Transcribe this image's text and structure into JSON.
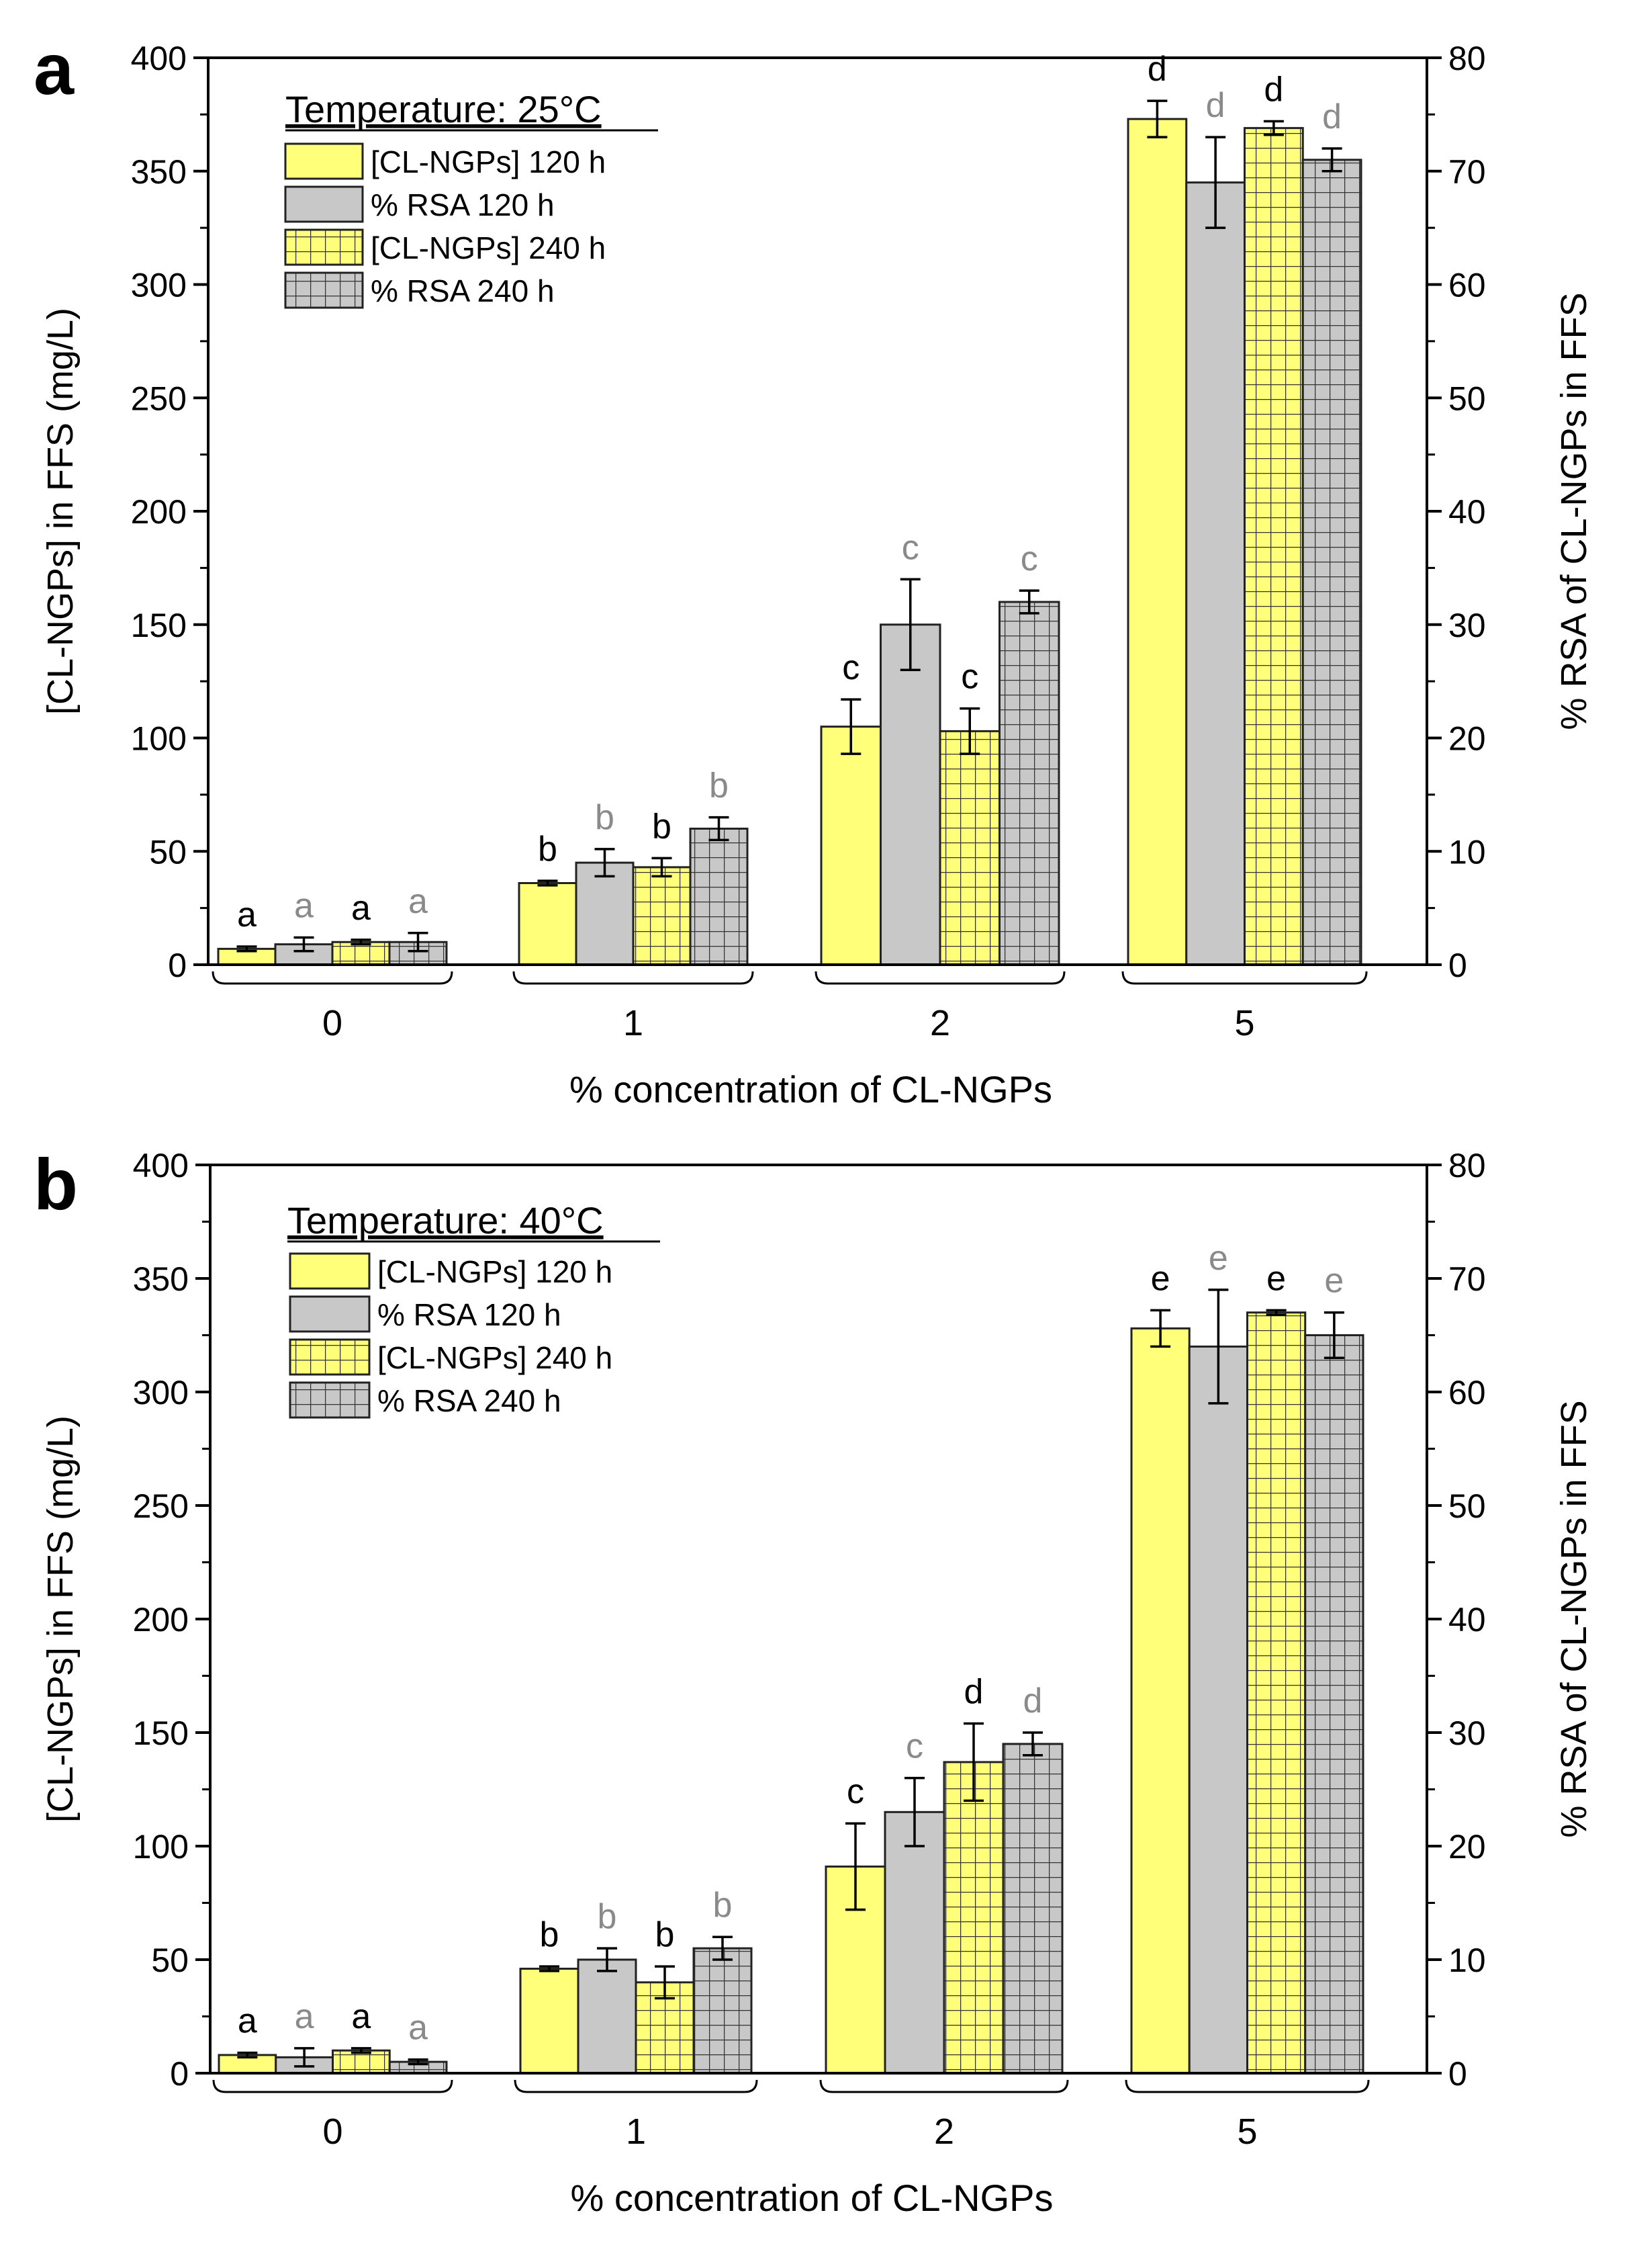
{
  "chart_data": [
    {
      "type": "bar",
      "panel_label": "a",
      "legend_title": "Temperature: 25°C",
      "legend_placement": "top-left",
      "categories": [
        "0",
        "1",
        "2",
        "5"
      ],
      "xlabel": "% concentration of CL-NGPs",
      "ylabel": "[CL-NGPs] in FFS (mg/L)",
      "y2label": "% RSA of CL-NGPs in FFS",
      "ylim": [
        0,
        400
      ],
      "y2lim": [
        0,
        80
      ],
      "yticks": [
        "0",
        "50",
        "100",
        "150",
        "200",
        "250",
        "300",
        "350",
        "400"
      ],
      "y2ticks": [
        "0",
        "10",
        "20",
        "30",
        "40",
        "50",
        "60",
        "70",
        "80"
      ],
      "series": [
        {
          "name": "[CL-NGPs] 120 h",
          "axis": "left",
          "fill": "#ffff7a",
          "pattern": "none",
          "label_color": "#000000",
          "values": [
            7,
            36,
            105,
            373
          ],
          "errors": [
            1,
            1,
            12,
            8
          ],
          "letters": [
            "a",
            "b",
            "c",
            "d"
          ]
        },
        {
          "name": "% RSA 120 h",
          "axis": "right",
          "fill": "#c8c8c8",
          "pattern": "none",
          "label_color": "#8a8a8a",
          "values": [
            1.8,
            9,
            30,
            69
          ],
          "errors": [
            0.6,
            1.2,
            4,
            4
          ],
          "letters": [
            "a",
            "b",
            "c",
            "d"
          ]
        },
        {
          "name": "[CL-NGPs] 240 h",
          "axis": "left",
          "fill": "#ffff7a",
          "pattern": "grid",
          "label_color": "#000000",
          "values": [
            10,
            43,
            103,
            369
          ],
          "errors": [
            1,
            4,
            10,
            3
          ],
          "letters": [
            "a",
            "b",
            "c",
            "d"
          ]
        },
        {
          "name": "% RSA 240 h",
          "axis": "right",
          "fill": "#c8c8c8",
          "pattern": "grid",
          "label_color": "#8a8a8a",
          "values": [
            2,
            12,
            32,
            71
          ],
          "errors": [
            0.8,
            1,
            1,
            1
          ],
          "letters": [
            "a",
            "b",
            "c",
            "d"
          ]
        }
      ]
    },
    {
      "type": "bar",
      "panel_label": "b",
      "legend_title": "Temperature: 40°C",
      "legend_placement": "top-left",
      "categories": [
        "0",
        "1",
        "2",
        "5"
      ],
      "xlabel": "% concentration of CL-NGPs",
      "ylabel": "[CL-NGPs] in FFS (mg/L)",
      "y2label": "% RSA of CL-NGPs in FFS",
      "ylim": [
        0,
        400
      ],
      "y2lim": [
        0,
        80
      ],
      "yticks": [
        "0",
        "50",
        "100",
        "150",
        "200",
        "250",
        "300",
        "350",
        "400"
      ],
      "y2ticks": [
        "0",
        "10",
        "20",
        "30",
        "40",
        "50",
        "60",
        "70",
        "80"
      ],
      "series": [
        {
          "name": "[CL-NGPs] 120 h",
          "axis": "left",
          "fill": "#ffff7a",
          "pattern": "none",
          "label_color": "#000000",
          "values": [
            8,
            46,
            91,
            328
          ],
          "errors": [
            1,
            1,
            19,
            8
          ],
          "letters": [
            "a",
            "b",
            "c",
            "e"
          ]
        },
        {
          "name": "% RSA 120 h",
          "axis": "right",
          "fill": "#c8c8c8",
          "pattern": "none",
          "label_color": "#8a8a8a",
          "values": [
            1.4,
            10,
            23,
            64
          ],
          "errors": [
            0.8,
            1,
            3,
            5
          ],
          "letters": [
            "a",
            "b",
            "c",
            "e"
          ]
        },
        {
          "name": "[CL-NGPs] 240 h",
          "axis": "left",
          "fill": "#ffff7a",
          "pattern": "grid",
          "label_color": "#000000",
          "values": [
            10,
            40,
            137,
            335
          ],
          "errors": [
            1,
            7,
            17,
            1
          ],
          "letters": [
            "a",
            "b",
            "d",
            "e"
          ]
        },
        {
          "name": "% RSA 240 h",
          "axis": "right",
          "fill": "#c8c8c8",
          "pattern": "grid",
          "label_color": "#8a8a8a",
          "values": [
            1,
            11,
            29,
            65
          ],
          "errors": [
            0.2,
            1,
            1,
            2
          ],
          "letters": [
            "a",
            "b",
            "d",
            "e"
          ]
        }
      ]
    }
  ]
}
